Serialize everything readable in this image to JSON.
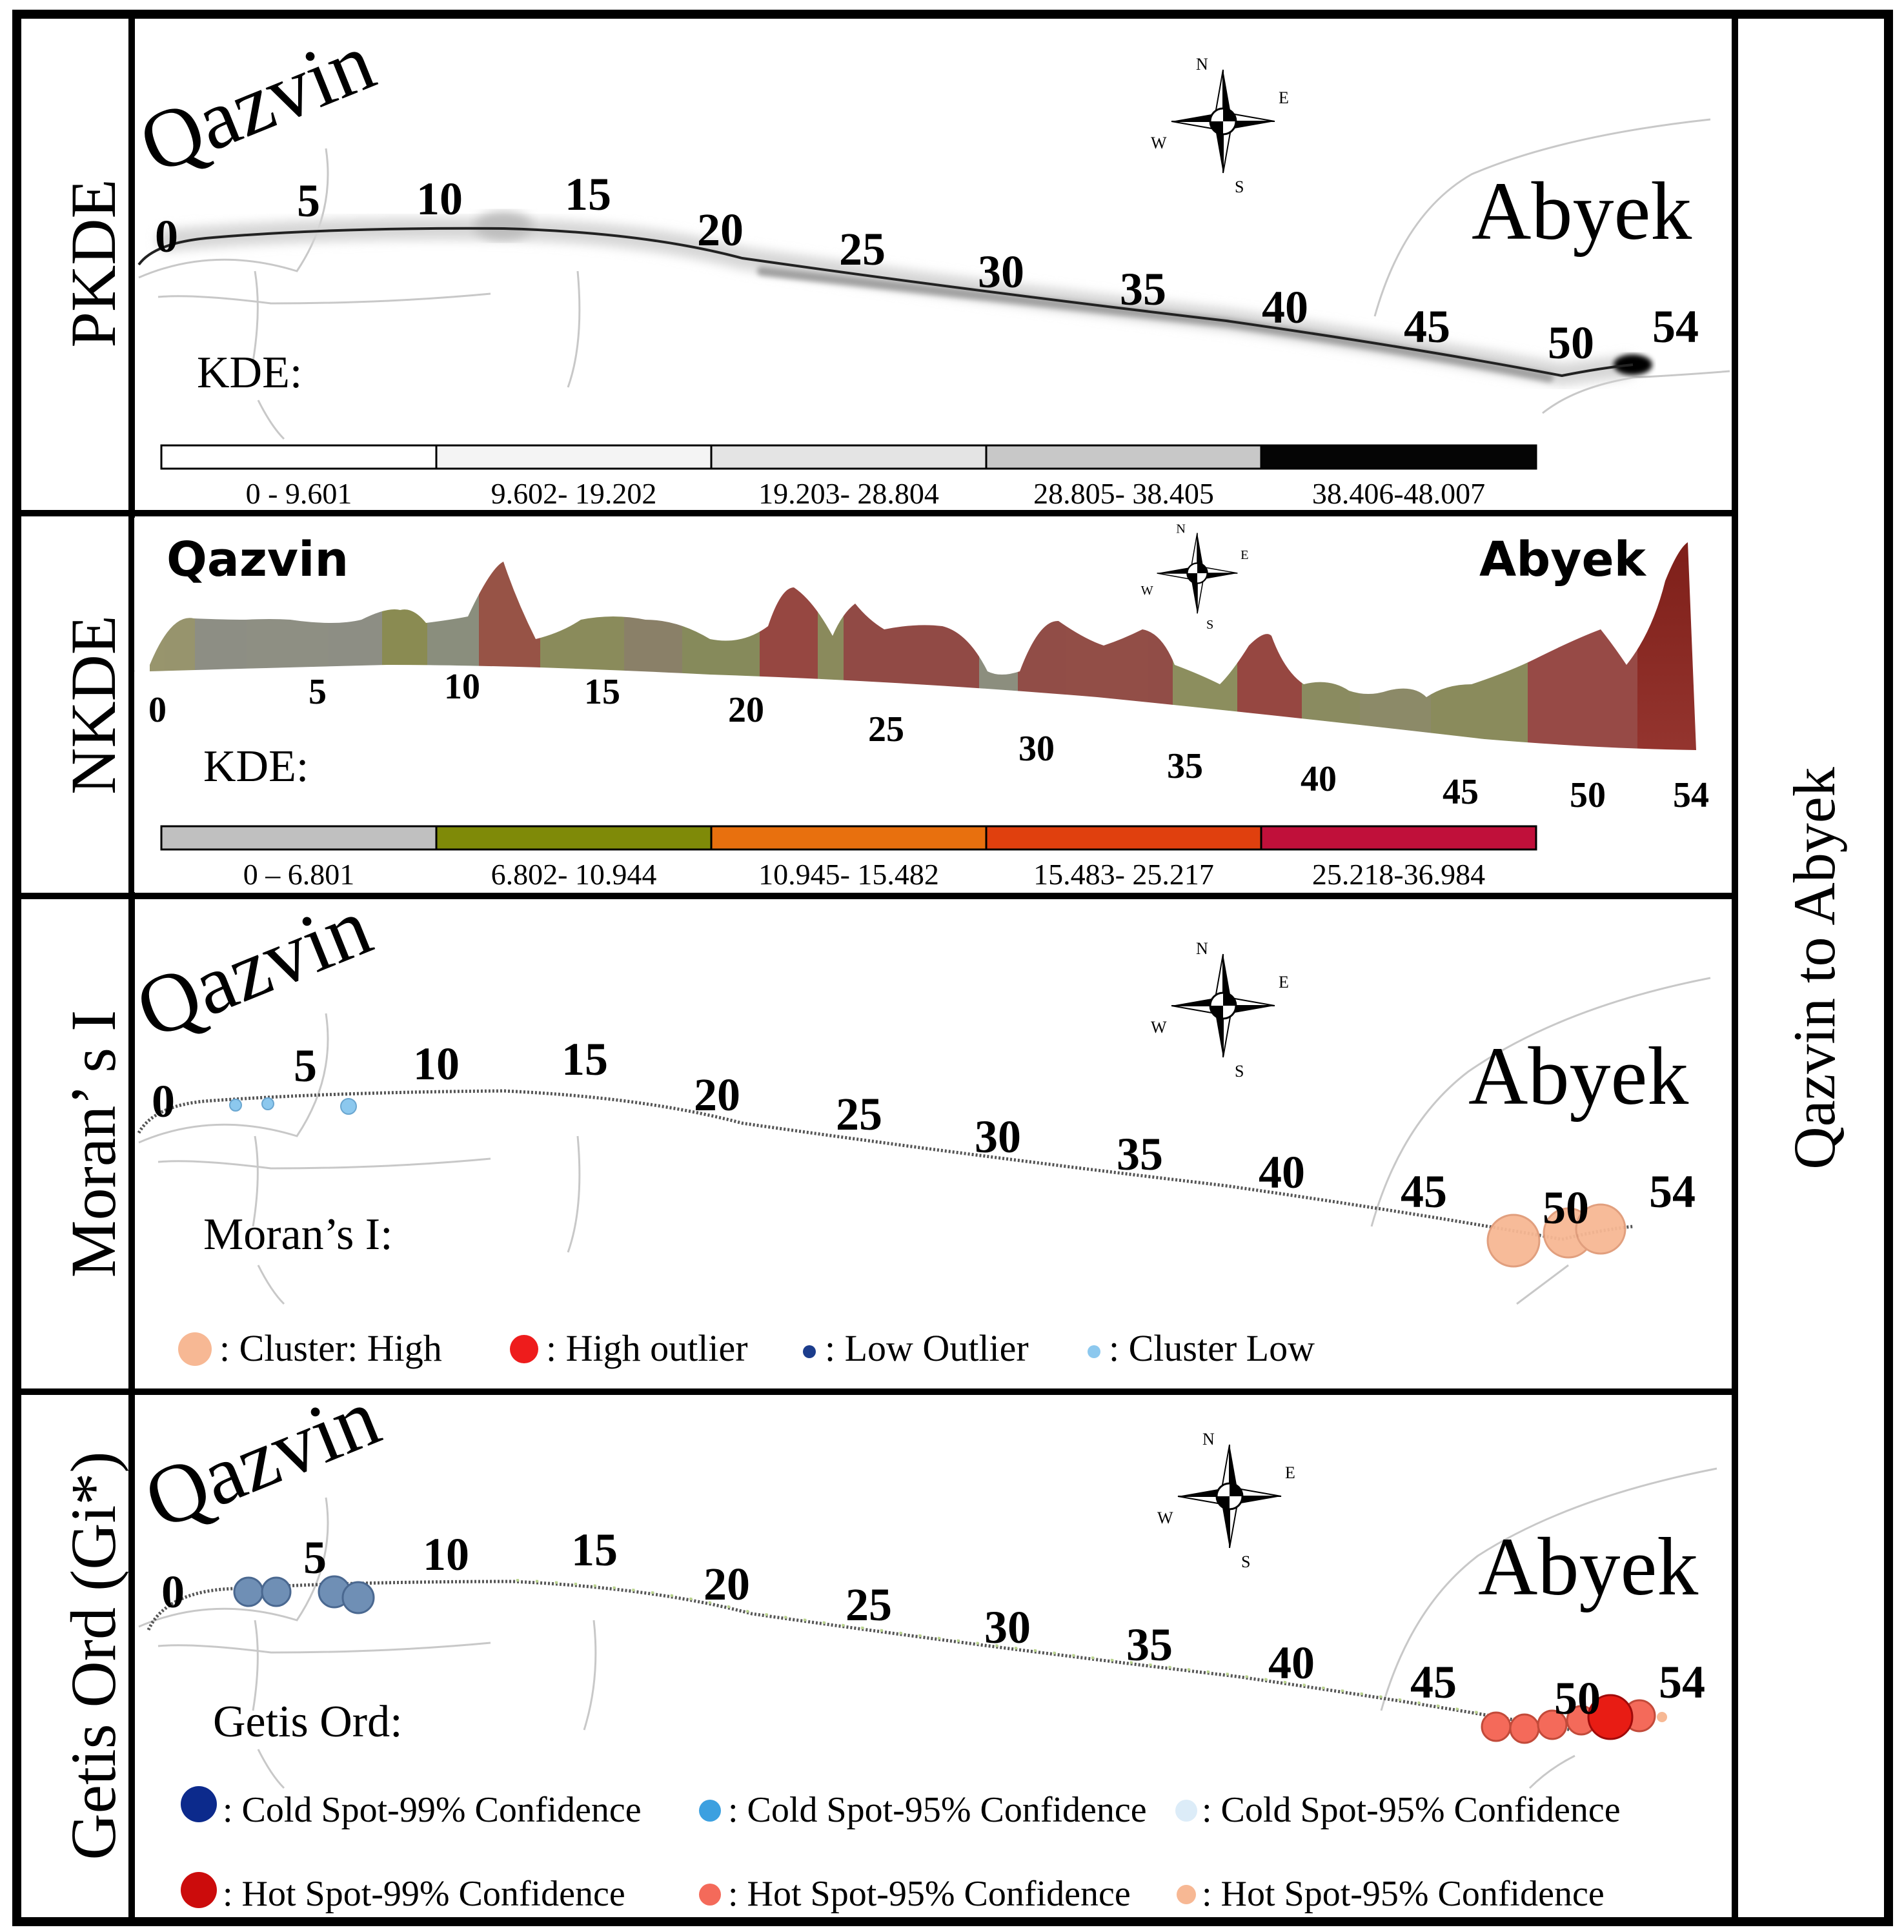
{
  "side_title": "Qazvin to Abyek",
  "panels": [
    {
      "row_label": "PKDE",
      "style": "map",
      "city_start": "Qazvin",
      "city_end": "Abyek",
      "km_labels": [
        "0",
        "5",
        "10",
        "15",
        "20",
        "25",
        "30",
        "35",
        "40",
        "45",
        "50",
        "54"
      ],
      "legend_title": "KDE:",
      "legend": [
        {
          "range": "0 - 9.601",
          "color": "#ffffff"
        },
        {
          "range": "9.602- 19.202",
          "color": "#f4f4f4"
        },
        {
          "range": "19.203- 28.804",
          "color": "#e4e4e4"
        },
        {
          "range": "28.805- 38.405",
          "color": "#c8c8c8"
        },
        {
          "range": "38.406-48.007",
          "color": "#050505"
        }
      ]
    },
    {
      "row_label": "NKDE",
      "style": "profile",
      "city_start": "Qazvin",
      "city_end": "Abyek",
      "km_labels": [
        "0",
        "5",
        "10",
        "15",
        "20",
        "25",
        "30",
        "35",
        "40",
        "45",
        "50",
        "54"
      ],
      "legend_title": "KDE:",
      "legend": [
        {
          "range": "0 – 6.801",
          "color": "#c0c0c0"
        },
        {
          "range": "6.802- 10.944",
          "color": "#7f8a08"
        },
        {
          "range": "10.945- 15.482",
          "color": "#e8700e"
        },
        {
          "range": "15.483- 25.217",
          "color": "#e0400e"
        },
        {
          "range": "25.218-36.984",
          "color": "#c0103a"
        }
      ]
    },
    {
      "row_label": "Moran’ s I",
      "style": "map",
      "city_start": "Qazvin",
      "city_end": "Abyek",
      "km_labels": [
        "0",
        "5",
        "10",
        "15",
        "20",
        "25",
        "30",
        "35",
        "40",
        "45",
        "50",
        "54"
      ],
      "legend_title": "Moran’s I:",
      "markers": [
        {
          "label": ": Cluster: High",
          "color": "#f7b894",
          "size": "large"
        },
        {
          "label": ": High outlier",
          "color": "#ee1c1c",
          "size": "medium"
        },
        {
          "label": ": Low Outlier",
          "color": "#1b3c8c",
          "size": "small"
        },
        {
          "label": ": Cluster Low",
          "color": "#8cc8ee",
          "size": "small"
        }
      ]
    },
    {
      "row_label": "Getis Ord (Gi*)",
      "style": "map",
      "city_start": "Qazvin",
      "city_end": "Abyek",
      "km_labels": [
        "0",
        "5",
        "10",
        "15",
        "20",
        "25",
        "30",
        "35",
        "40",
        "45",
        "50",
        "54"
      ],
      "legend_title": "Getis Ord:",
      "markers": [
        {
          "label": ": Cold Spot-99% Confidence",
          "color": "#0c2a8c",
          "size": "large"
        },
        {
          "label": ": Cold Spot-95% Confidence",
          "color": "#3ca0e0",
          "size": "medium"
        },
        {
          "label": ": Cold Spot-95% Confidence",
          "color": "#dcecf8",
          "size": "medium"
        },
        {
          "label": ": Hot Spot-99% Confidence",
          "color": "#cc0c0c",
          "size": "large"
        },
        {
          "label": ": Hot Spot-95% Confidence",
          "color": "#f46a5a",
          "size": "medium"
        },
        {
          "label": ": Hot Spot-95% Confidence",
          "color": "#f7b894",
          "size": "medium"
        }
      ]
    }
  ]
}
